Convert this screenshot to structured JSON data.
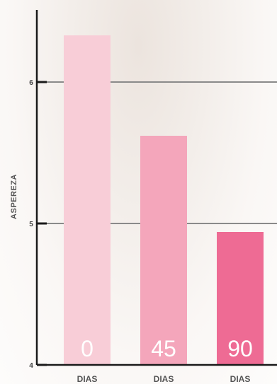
{
  "chart_data": {
    "type": "bar",
    "categories": [
      "0",
      "45",
      "90"
    ],
    "xlabels": [
      "DIAS",
      "DIAS",
      "DIAS"
    ],
    "values": [
      6.33,
      5.62,
      4.94
    ],
    "colors": [
      "#f8cdd7",
      "#f4a6bb",
      "#ee6b94"
    ],
    "ylabel": "ASPEREZA",
    "ylim": [
      4,
      7
    ],
    "yticks": [
      4,
      5,
      6
    ],
    "gridlines": [
      5,
      6
    ],
    "grid": true,
    "legend": "none"
  }
}
